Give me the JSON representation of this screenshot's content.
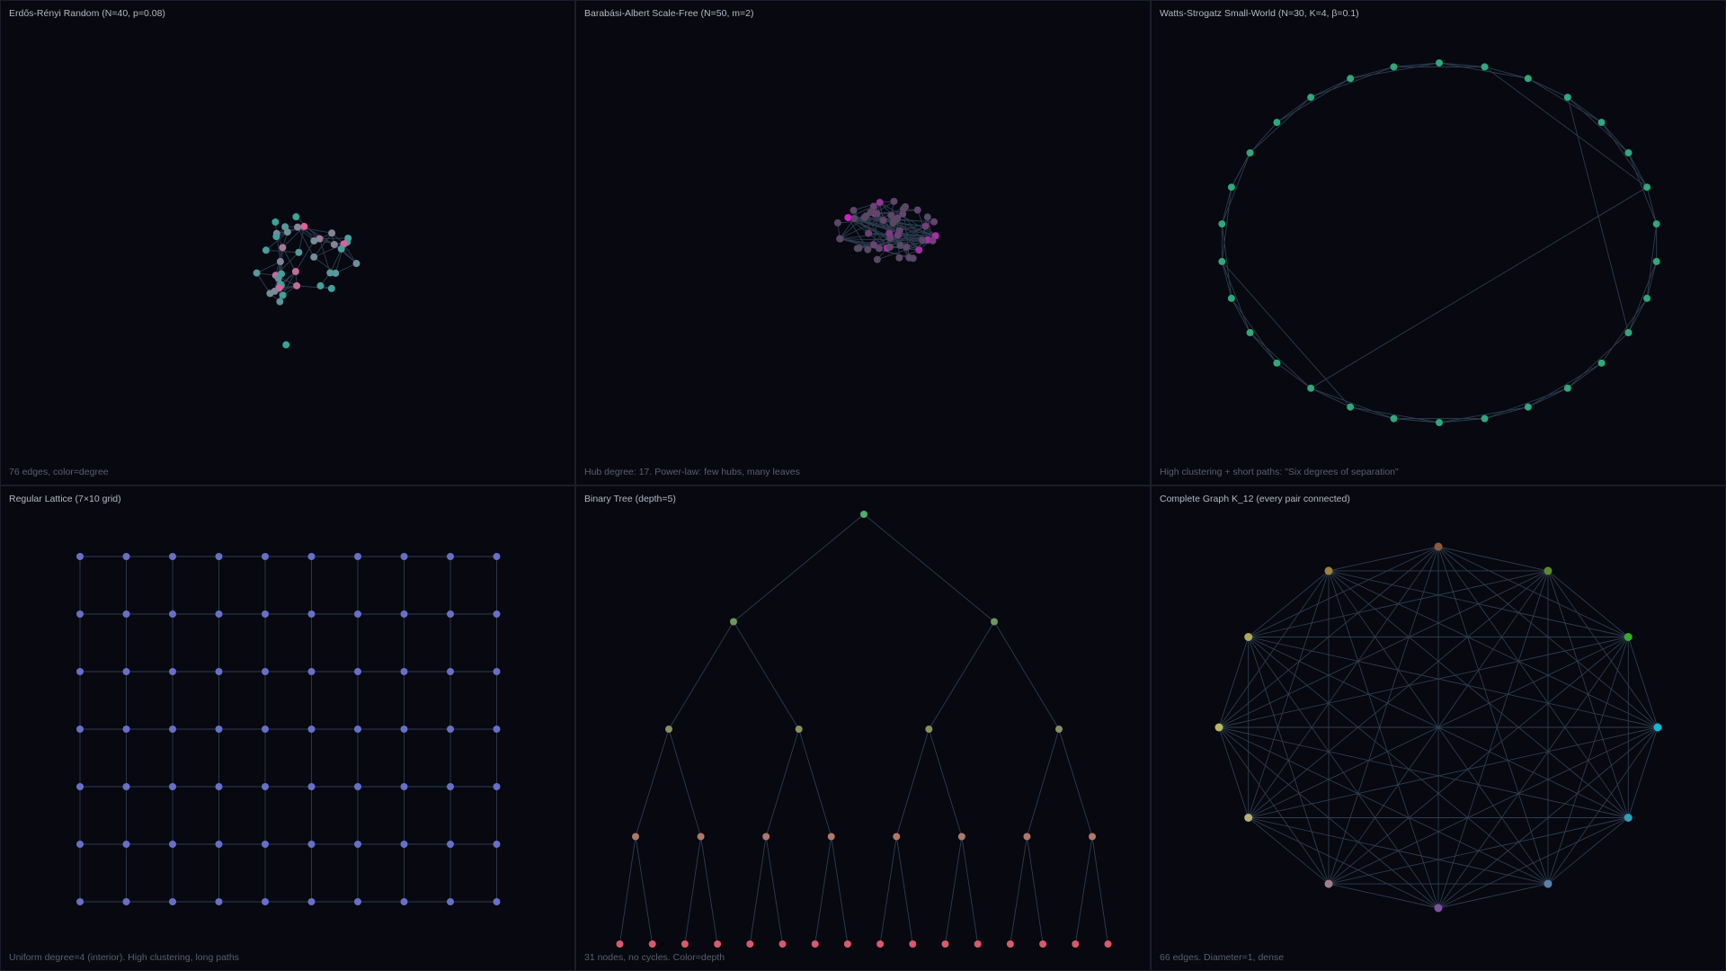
{
  "edge_color": "#2c3e50",
  "background": "#070810",
  "panels": [
    {
      "id": "er",
      "title": "Erdős-Rényi Random  (N=40, p=0.08)",
      "footer": "76 edges, color=degree",
      "params": {
        "N": 40,
        "p": 0.08
      },
      "colors": {
        "low": "#2fa89a",
        "high": "#e0609a"
      }
    },
    {
      "id": "ba",
      "title": "Barabási-Albert Scale-Free  (N=50, m=2)",
      "footer": "Hub degree: 17. Power-law: few hubs, many leaves",
      "params": {
        "N": 50,
        "m": 2
      },
      "colors": {
        "low": "#4a4d58",
        "high": "#d020c8"
      }
    },
    {
      "id": "ws",
      "title": "Watts-Strogatz Small-World  (N=30, K=4, β=0.1)",
      "footer": "High clustering + short paths: \"Six degrees of separation\"",
      "params": {
        "N": 30,
        "K": 4,
        "beta": 0.1
      },
      "colors": {
        "node": "#2fa87a"
      }
    },
    {
      "id": "lattice",
      "title": "Regular Lattice  (7×10 grid)",
      "footer": "Uniform degree=4 (interior). High clustering, long paths",
      "params": {
        "rows": 7,
        "cols": 10
      },
      "colors": {
        "node": "#6670c8"
      }
    },
    {
      "id": "tree",
      "title": "Binary Tree  (depth=5)",
      "footer": "31 nodes, no cycles. Color=depth",
      "params": {
        "depth": 5
      },
      "colors": {
        "levels": [
          "#4caf6a",
          "#6a9a58",
          "#8a8f60",
          "#b07868",
          "#d85a6a"
        ]
      }
    },
    {
      "id": "complete",
      "title": "Complete Graph K_12  (every pair connected)",
      "footer": "66 edges. Diameter=1, dense",
      "params": {
        "N": 12
      },
      "colors": {
        "nodes": [
          "#8a5a3a",
          "#5a8a2a",
          "#30b020",
          "#10b8d0",
          "#30a0b8",
          "#5a80a8",
          "#8050a0",
          "#a08088",
          "#b8b078",
          "#b8b860",
          "#b0a858",
          "#a08040"
        ]
      }
    }
  ]
}
